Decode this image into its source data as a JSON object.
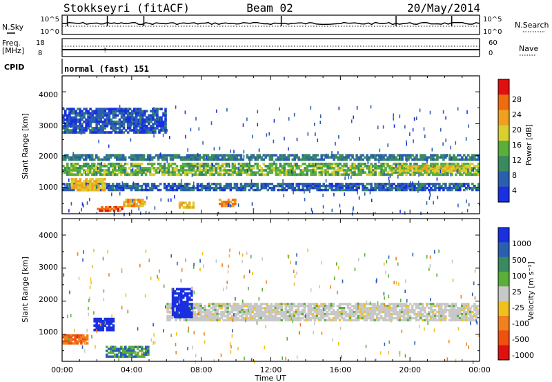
{
  "header": {
    "station": "Stokkseyri (fitACF)",
    "beam": "Beam 02",
    "date": "20/May/2014"
  },
  "top_panels": {
    "nsky_label": "N.Sky",
    "nsearch_label": "N.Search",
    "freq_label": "Freq.",
    "freq_unit": "[MHz]",
    "nave_label": "Nave",
    "cpid_label": "CPID",
    "cpid_value": "normal (fast) 151",
    "noise_ticks_left": [
      "10^5",
      "10^0"
    ],
    "noise_ticks_right": [
      "10^5",
      "10^0"
    ],
    "freq_ticks_left": [
      "18",
      "8"
    ],
    "nave_ticks_right": [
      "60",
      "0"
    ]
  },
  "axes": {
    "x_ticks": [
      "00:00",
      "04:00",
      "08:00",
      "12:00",
      "16:00",
      "20:00",
      "00:00"
    ],
    "x_label": "Time UT",
    "y_label": "Slant Range [km]",
    "y_ticks": [
      "1000",
      "2000",
      "3000",
      "4000"
    ]
  },
  "colorbars": {
    "power": {
      "label": "Power [dB]",
      "ticks": [
        "4",
        "8",
        "12",
        "16",
        "20",
        "24",
        "28"
      ],
      "colors": [
        "#1a2fe0",
        "#2a5fb0",
        "#3a8a60",
        "#5aae3a",
        "#d8d030",
        "#f0a020",
        "#f06a10",
        "#e01010"
      ]
    },
    "velocity": {
      "label": "Velocity [m s⁻¹]",
      "ticks": [
        "1000",
        "500",
        "100",
        "25",
        "-25",
        "-100",
        "-500",
        "-1000"
      ],
      "colors": [
        "#1a2fe0",
        "#2a5fb0",
        "#3a8a60",
        "#5aae3a",
        "#c8c8c8",
        "#f0c020",
        "#f08020",
        "#f05010",
        "#e01010"
      ]
    }
  },
  "chart_data": [
    {
      "type": "line",
      "title": "N.Sky / N.Search",
      "x_range_hours": [
        0,
        24
      ],
      "y_scale": "log",
      "ylim": [
        1,
        100000
      ]
    },
    {
      "type": "line",
      "title": "Freq. [MHz] / Nave",
      "x_range_hours": [
        0,
        24
      ],
      "freq_mhz": 10,
      "nave": 50,
      "ylim_left": [
        8,
        18
      ],
      "ylim_right": [
        0,
        60
      ]
    },
    {
      "type": "heatmap",
      "title": "Power [dB]",
      "x_range_hours": [
        0,
        24
      ],
      "y_range_km": [
        180,
        4500
      ],
      "value_range": [
        0,
        30
      ],
      "features": [
        {
          "t": [
            0.0,
            24.0
          ],
          "range_km": [
            1380,
            1780
          ],
          "level_db": 14
        },
        {
          "t": [
            0.0,
            24.0
          ],
          "range_km": [
            1850,
            2050
          ],
          "level_db": 8
        },
        {
          "t": [
            0.0,
            24.0
          ],
          "range_km": [
            900,
            1150
          ],
          "level_db": 6
        },
        {
          "t": [
            0.0,
            6.0
          ],
          "range_km": [
            2700,
            3500
          ],
          "level_db": 5
        },
        {
          "t": [
            2.0,
            3.5
          ],
          "range_km": [
            250,
            420
          ],
          "level_db": 27
        },
        {
          "t": [
            3.5,
            4.8
          ],
          "range_km": [
            400,
            650
          ],
          "level_db": 22
        },
        {
          "t": [
            6.7,
            7.6
          ],
          "range_km": [
            350,
            560
          ],
          "level_db": 20
        },
        {
          "t": [
            9.0,
            10.0
          ],
          "range_km": [
            400,
            650
          ],
          "level_db": 24
        },
        {
          "t": [
            0.5,
            2.5
          ],
          "range_km": [
            900,
            1300
          ],
          "level_db": 20
        },
        {
          "t": [
            19.0,
            23.5
          ],
          "range_km": [
            1500,
            1700
          ],
          "level_db": 18
        }
      ]
    },
    {
      "type": "heatmap",
      "title": "Velocity [m s-1]",
      "x_range_hours": [
        0,
        24
      ],
      "y_range_km": [
        180,
        4500
      ],
      "value_range": [
        -1000,
        1000
      ],
      "features": [
        {
          "t": [
            6.0,
            24.0
          ],
          "range_km": [
            1400,
            1950
          ],
          "velocity": 0
        },
        {
          "t": [
            0.0,
            1.5
          ],
          "range_km": [
            700,
            1000
          ],
          "velocity": -500
        },
        {
          "t": [
            1.8,
            3.0
          ],
          "range_km": [
            1100,
            1500
          ],
          "velocity": 800
        },
        {
          "t": [
            2.5,
            5.0
          ],
          "range_km": [
            300,
            650
          ],
          "velocity": 100
        },
        {
          "t": [
            6.3,
            7.5
          ],
          "range_km": [
            1500,
            2400
          ],
          "velocity": 900
        }
      ]
    }
  ]
}
